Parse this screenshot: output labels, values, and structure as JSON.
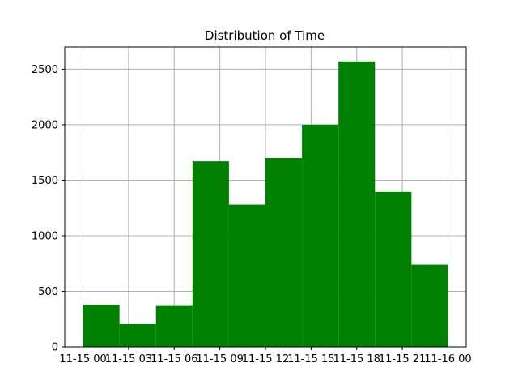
{
  "chart_data": {
    "type": "histogram",
    "title": "Distribution of Time",
    "xlabel": "",
    "ylabel": "",
    "bar_color": "#008000",
    "grid": true,
    "x_ticks": [
      "11-15 00",
      "11-15 03",
      "11-15 06",
      "11-15 09",
      "11-15 12",
      "11-15 15",
      "11-15 18",
      "11-15 21",
      "11-16 00"
    ],
    "y_ticks": [
      0,
      500,
      1000,
      1500,
      2000,
      2500
    ],
    "ylim": [
      0,
      2700
    ],
    "bins": [
      {
        "start_hour": 0.0,
        "end_hour": 2.4,
        "count": 380
      },
      {
        "start_hour": 2.4,
        "end_hour": 4.8,
        "count": 205
      },
      {
        "start_hour": 4.8,
        "end_hour": 7.2,
        "count": 375
      },
      {
        "start_hour": 7.2,
        "end_hour": 9.6,
        "count": 1670
      },
      {
        "start_hour": 9.6,
        "end_hour": 12.0,
        "count": 1280
      },
      {
        "start_hour": 12.0,
        "end_hour": 14.4,
        "count": 1700
      },
      {
        "start_hour": 14.4,
        "end_hour": 16.8,
        "count": 2000
      },
      {
        "start_hour": 16.8,
        "end_hour": 19.2,
        "count": 2570
      },
      {
        "start_hour": 19.2,
        "end_hour": 21.6,
        "count": 1395
      },
      {
        "start_hour": 21.6,
        "end_hour": 24.0,
        "count": 740
      }
    ]
  }
}
